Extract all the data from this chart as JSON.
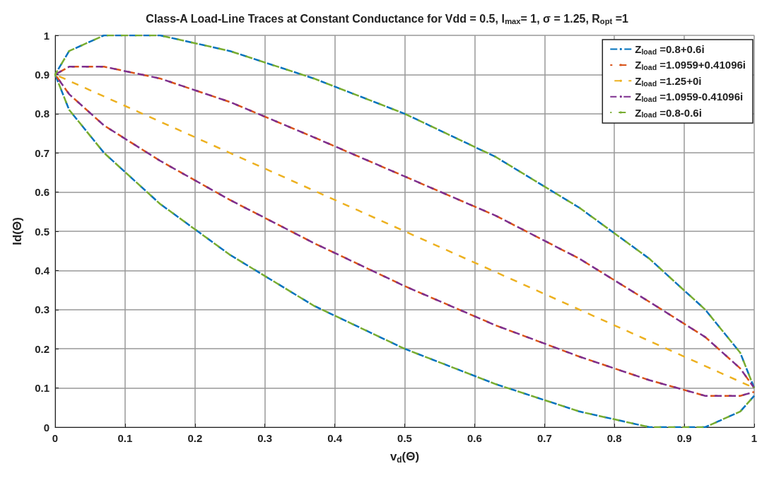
{
  "chart_data": {
    "type": "line",
    "title": "Class-A Load-Line Traces at Constant Conductance for Vdd = 0.5, I$_{max}$= 1, σ = 1.25, R$_{opt}$ =1",
    "xlabel": "v$_{d}$(Θ)",
    "ylabel": "Id(Θ)",
    "xlim": [
      0,
      1
    ],
    "xticks": [
      0,
      0.1,
      0.2,
      0.3,
      0.4,
      0.5,
      0.6,
      0.7,
      0.8,
      0.9,
      1
    ],
    "ylim": [
      0,
      1
    ],
    "yticks": [
      0,
      0.1,
      0.2,
      0.3,
      0.4,
      0.5,
      0.6,
      0.7,
      0.8,
      0.9,
      1
    ],
    "grid": true,
    "legend": "top right",
    "marker": "none",
    "line_style": "dashed",
    "series": [
      {
        "name": "Z$_{load}$ =0.8+0.6i",
        "color": "#0072bd",
        "x": [
          1,
          0.98,
          0.93,
          0.85,
          0.75,
          0.63,
          0.5,
          0.37,
          0.25,
          0.15,
          0.07,
          0.02,
          0,
          0.02,
          0.07,
          0.15,
          0.25,
          0.37,
          0.5,
          0.63,
          0.75,
          0.85,
          0.93,
          0.98,
          1
        ],
        "values": [
          0.1,
          0.19,
          0.3,
          0.43,
          0.56,
          0.69,
          0.8,
          0.89,
          0.96,
          1,
          1,
          0.96,
          0.9,
          0.81,
          0.7,
          0.57,
          0.44,
          0.31,
          0.2,
          0.11,
          0.04,
          0,
          0,
          0.04,
          0.08
        ]
      },
      {
        "name": "Z$_{load}$ =1.0959+0.41096i",
        "color": "#d95319",
        "x": [
          1,
          0.98,
          0.93,
          0.85,
          0.75,
          0.63,
          0.5,
          0.37,
          0.25,
          0.15,
          0.07,
          0.02,
          0,
          0.02,
          0.07,
          0.15,
          0.25,
          0.37,
          0.5,
          0.63,
          0.75,
          0.85,
          0.93,
          0.98,
          1
        ],
        "values": [
          0.1,
          0.15,
          0.23,
          0.32,
          0.43,
          0.54,
          0.64,
          0.74,
          0.83,
          0.89,
          0.92,
          0.92,
          0.9,
          0.85,
          0.77,
          0.68,
          0.58,
          0.47,
          0.36,
          0.26,
          0.18,
          0.12,
          0.08,
          0.08,
          0.09
        ]
      },
      {
        "name": "Z$_{load}$ =1.25+0i",
        "color": "#edb120",
        "x": [
          0,
          1
        ],
        "values": [
          0.9,
          0.1
        ]
      },
      {
        "name": "Z$_{load}$ =1.0959-0.41096i",
        "color": "#7e2f8e",
        "x": [
          1,
          0.98,
          0.93,
          0.85,
          0.75,
          0.63,
          0.5,
          0.37,
          0.25,
          0.15,
          0.07,
          0.02,
          0,
          0.02,
          0.07,
          0.15,
          0.25,
          0.37,
          0.5,
          0.63,
          0.75,
          0.85,
          0.93,
          0.98,
          1
        ],
        "values": [
          0.1,
          0.15,
          0.23,
          0.32,
          0.43,
          0.54,
          0.64,
          0.74,
          0.83,
          0.89,
          0.92,
          0.92,
          0.9,
          0.85,
          0.77,
          0.68,
          0.58,
          0.47,
          0.36,
          0.26,
          0.18,
          0.12,
          0.08,
          0.08,
          0.09
        ]
      },
      {
        "name": "Z$_{load}$ =0.8-0.6i",
        "color": "#77ac30",
        "x": [
          1,
          0.98,
          0.93,
          0.85,
          0.75,
          0.63,
          0.5,
          0.37,
          0.25,
          0.15,
          0.07,
          0.02,
          0,
          0.02,
          0.07,
          0.15,
          0.25,
          0.37,
          0.5,
          0.63,
          0.75,
          0.85,
          0.93,
          0.98,
          1
        ],
        "values": [
          0.1,
          0.19,
          0.3,
          0.43,
          0.56,
          0.69,
          0.8,
          0.89,
          0.96,
          1,
          1,
          0.96,
          0.9,
          0.81,
          0.7,
          0.57,
          0.44,
          0.31,
          0.2,
          0.11,
          0.04,
          0,
          0,
          0.04,
          0.08
        ]
      }
    ]
  }
}
